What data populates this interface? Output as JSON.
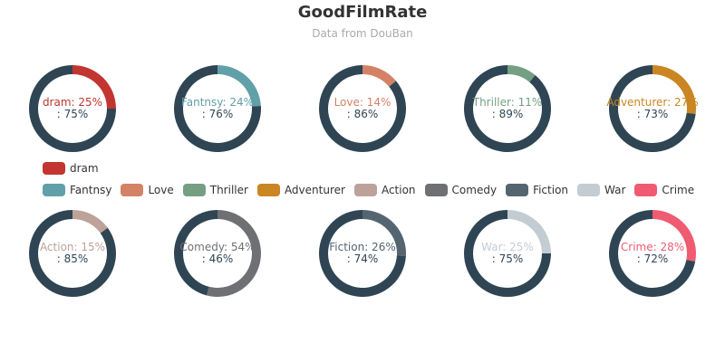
{
  "title": "GoodFilmRate",
  "subtitle": "Data from DouBan",
  "chart_data": {
    "type": "pie",
    "variant": "donut",
    "remainder_color": "#2f4554",
    "legend_rows": [
      [
        "dram"
      ],
      [
        "Fantnsy",
        "Love",
        "Thriller",
        "Adventurer",
        "Action",
        "Comedy",
        "Fiction",
        "War",
        "Crime"
      ]
    ],
    "series": [
      {
        "name": "dram",
        "value": 25,
        "remainder": 75,
        "color": "#c23531",
        "label": "dram: 25%",
        "remainder_label": ": 75%"
      },
      {
        "name": "Fantnsy",
        "value": 24,
        "remainder": 76,
        "color": "#61a0a8",
        "label": "Fantnsy: 24%",
        "remainder_label": ": 76%"
      },
      {
        "name": "Love",
        "value": 14,
        "remainder": 86,
        "color": "#d48265",
        "label": "Love: 14%",
        "remainder_label": ": 86%"
      },
      {
        "name": "Thriller",
        "value": 11,
        "remainder": 89,
        "color": "#749f83",
        "label": "Thriller: 11%",
        "remainder_label": ": 89%"
      },
      {
        "name": "Adventurer",
        "value": 27,
        "remainder": 73,
        "color": "#ca8622",
        "label": "Adventurer: 27%",
        "remainder_label": ": 73%"
      },
      {
        "name": "Action",
        "value": 15,
        "remainder": 85,
        "color": "#bda29a",
        "label": "Action: 15%",
        "remainder_label": ": 85%"
      },
      {
        "name": "Comedy",
        "value": 54,
        "remainder": 46,
        "color": "#6e7074",
        "label": "Comedy: 54%",
        "remainder_label": ": 46%"
      },
      {
        "name": "Fiction",
        "value": 26,
        "remainder": 74,
        "color": "#546570",
        "label": "Fiction: 26%",
        "remainder_label": ": 74%"
      },
      {
        "name": "War",
        "value": 25,
        "remainder": 75,
        "color": "#c4ccd3",
        "label": "War: 25%",
        "remainder_label": ": 75%"
      },
      {
        "name": "Crime",
        "value": 28,
        "remainder": 72,
        "color": "#f05b72",
        "label": "Crime: 28%",
        "remainder_label": ": 72%"
      }
    ]
  }
}
